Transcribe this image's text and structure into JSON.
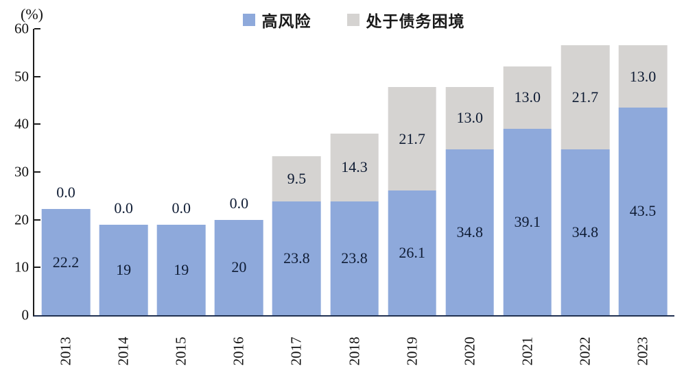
{
  "legend": {
    "items": [
      {
        "label": "高风险",
        "color": "#8EA9DB"
      },
      {
        "label": "处于债务困境",
        "color": "#D5D3D1"
      }
    ]
  },
  "y_axis": {
    "unit": "(%)",
    "ticks": [
      "0",
      "10",
      "20",
      "30",
      "40",
      "50",
      "60"
    ],
    "max": 60
  },
  "chart_data": {
    "type": "bar",
    "stacked": true,
    "title": "",
    "xlabel": "",
    "ylabel": "(%)",
    "ylim": [
      0,
      60
    ],
    "grid": false,
    "legend_position": "top",
    "categories": [
      "2013",
      "2014",
      "2015",
      "2016",
      "2017",
      "2018",
      "2019",
      "2020",
      "2021",
      "2022",
      "2023"
    ],
    "series": [
      {
        "name": "高风险",
        "color": "#8EA9DB",
        "values": [
          22.2,
          19,
          19,
          20,
          23.8,
          23.8,
          26.1,
          34.8,
          39.1,
          34.8,
          43.5
        ],
        "labels": [
          "22.2",
          "19",
          "19",
          "20",
          "23.8",
          "23.8",
          "26.1",
          "34.8",
          "39.1",
          "34.8",
          "43.5"
        ]
      },
      {
        "name": "处于债务困境",
        "color": "#D5D3D1",
        "values": [
          0.0,
          0.0,
          0.0,
          0.0,
          9.5,
          14.3,
          21.7,
          13.0,
          13.0,
          21.7,
          13.0
        ],
        "labels": [
          "0.0",
          "0.0",
          "0.0",
          "0.0",
          "9.5",
          "14.3",
          "21.7",
          "13.0",
          "13.0",
          "21.7",
          "13.0"
        ]
      }
    ]
  }
}
